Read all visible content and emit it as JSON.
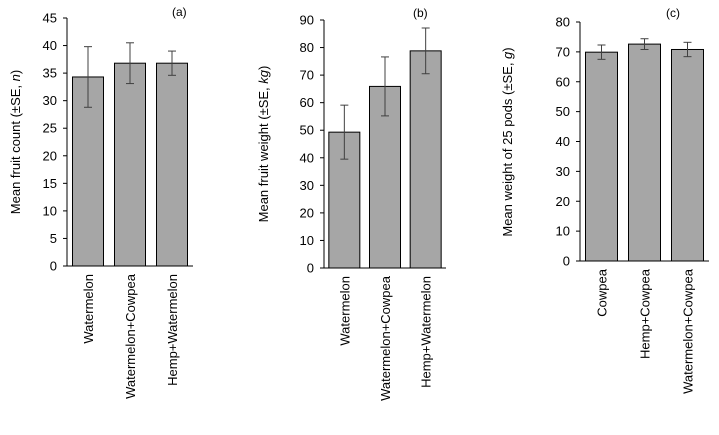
{
  "colors": {
    "bar_fill": "#a6a6a6",
    "bar_stroke": "#000000",
    "axis": "#000000"
  },
  "chart_data": [
    {
      "type": "bar",
      "panel_label": "(a)",
      "ylabel_parts": [
        "Mean fruit count (±SE, ",
        "n",
        ")"
      ],
      "ylim": [
        0,
        45
      ],
      "yticks": [
        "0",
        "5",
        "10",
        "15",
        "20",
        "25",
        "30",
        "35",
        "40",
        "45"
      ],
      "categories": [
        "Watermelon",
        "Watermelon+Cowpea",
        "Hemp+Watermelon"
      ],
      "values": [
        34.3,
        36.8,
        36.8
      ],
      "errors": [
        5.5,
        3.7,
        2.2
      ]
    },
    {
      "type": "bar",
      "panel_label": "(b)",
      "ylabel_parts": [
        "Mean fruit weight  (±SE, ",
        "kg",
        ")"
      ],
      "ylim": [
        0,
        90
      ],
      "yticks": [
        "0",
        "10",
        "20",
        "30",
        "40",
        "50",
        "60",
        "70",
        "80",
        "90"
      ],
      "categories": [
        "Watermelon",
        "Watermelon+Cowpea",
        "Hemp+Watermelon"
      ],
      "values": [
        49.3,
        65.9,
        78.8
      ],
      "errors": [
        9.8,
        10.7,
        8.3
      ]
    },
    {
      "type": "bar",
      "panel_label": "(c)",
      "ylabel_parts": [
        "Mean weight of 25 pods (±SE, ",
        "g",
        ")"
      ],
      "ylim": [
        0,
        80
      ],
      "yticks": [
        "0",
        "10",
        "20",
        "30",
        "40",
        "50",
        "60",
        "70",
        "80"
      ],
      "categories": [
        "Cowpea",
        "Hemp+Cowpea",
        "Watermelon+Cowpea"
      ],
      "values": [
        69.9,
        72.6,
        70.8
      ],
      "errors": [
        2.4,
        1.8,
        2.4
      ]
    }
  ]
}
